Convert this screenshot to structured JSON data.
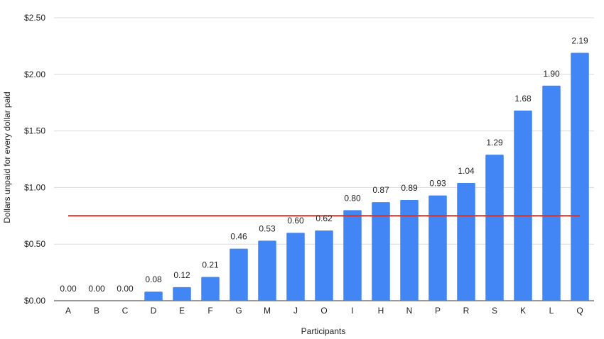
{
  "chart_data": {
    "type": "bar",
    "title": "",
    "xlabel": "Participants",
    "ylabel": "Dollars unpaid for every dollar paid",
    "categories": [
      "A",
      "B",
      "C",
      "D",
      "E",
      "F",
      "G",
      "M",
      "J",
      "O",
      "I",
      "H",
      "N",
      "P",
      "R",
      "S",
      "K",
      "L",
      "Q"
    ],
    "values": [
      0.0,
      0.0,
      0.0,
      0.08,
      0.12,
      0.21,
      0.46,
      0.53,
      0.6,
      0.62,
      0.8,
      0.87,
      0.89,
      0.93,
      1.04,
      1.29,
      1.68,
      1.9,
      2.19
    ],
    "data_labels": [
      "0.00",
      "0.00",
      "0.00",
      "0.08",
      "0.12",
      "0.21",
      "0.46",
      "0.53",
      "0.60",
      "0.62",
      "0.80",
      "0.87",
      "0.89",
      "0.93",
      "1.04",
      "1.29",
      "1.68",
      "1.90",
      "2.19"
    ],
    "ylim": [
      0,
      2.5
    ],
    "y_ticks": [
      0,
      0.5,
      1.0,
      1.5,
      2.0,
      2.5
    ],
    "y_tick_labels": [
      "$0.00",
      "$0.50",
      "$1.00",
      "$1.50",
      "$2.00",
      "$2.50"
    ],
    "reference_line": {
      "value": 0.75,
      "color": "#d93025"
    },
    "grid": true,
    "legend": "none",
    "colors": {
      "bar": "#4285f4",
      "grid": "#d9d9d9",
      "reference": "#d93025"
    }
  }
}
